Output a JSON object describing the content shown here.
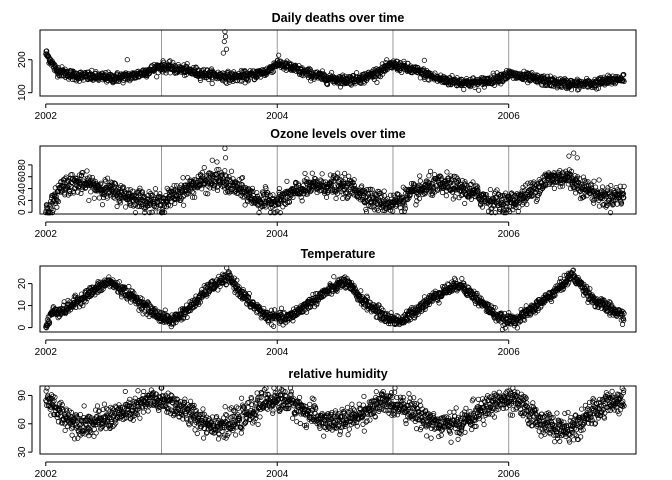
{
  "chart_data": [
    {
      "type": "scatter",
      "title": "Daily deaths over time",
      "xlabel": "",
      "ylabel": "",
      "x_start": "2002-01-01",
      "x_end": "2006-12-31",
      "xlim": [
        2001.95,
        2007.1
      ],
      "ylim": [
        90,
        290
      ],
      "x_ticks": [
        2002,
        2004,
        2006
      ],
      "x_tick_labels": [
        "2002",
        "2004",
        "2006"
      ],
      "y_ticks": [
        100,
        200
      ],
      "y_tick_labels": [
        "100",
        "200"
      ],
      "reference_lines_x": [
        2003,
        2004,
        2005,
        2006
      ],
      "grid": false,
      "profile": {
        "x": [
          "2002-01-01",
          "2002-01-15",
          "2002-02-01",
          "2002-03-01",
          "2002-04-01",
          "2002-06-01",
          "2002-08-01",
          "2002-10-01",
          "2002-12-01",
          "2003-01-01",
          "2003-02-01",
          "2003-04-01",
          "2003-06-01",
          "2003-08-01",
          "2003-10-01",
          "2003-12-01",
          "2004-01-01",
          "2004-02-01",
          "2004-04-01",
          "2004-06-01",
          "2004-08-01",
          "2004-10-01",
          "2004-12-01",
          "2005-01-01",
          "2005-02-01",
          "2005-04-01",
          "2005-06-01",
          "2005-08-01",
          "2005-10-01",
          "2005-12-01",
          "2006-01-01",
          "2006-02-01",
          "2006-04-01",
          "2006-06-01",
          "2006-08-01",
          "2006-10-01",
          "2006-12-31"
        ],
        "y": [
          220,
          200,
          170,
          160,
          152,
          148,
          145,
          150,
          170,
          180,
          175,
          165,
          155,
          148,
          150,
          165,
          190,
          180,
          160,
          145,
          138,
          145,
          170,
          185,
          178,
          160,
          140,
          132,
          130,
          145,
          155,
          150,
          140,
          130,
          125,
          128,
          145
        ],
        "spread": 14
      },
      "outliers": [
        {
          "x": "2003-07-20",
          "y": 285
        },
        {
          "x": "2003-07-22",
          "y": 270
        },
        {
          "x": "2003-07-18",
          "y": 255
        },
        {
          "x": "2003-07-25",
          "y": 232
        },
        {
          "x": "2003-07-15",
          "y": 220
        },
        {
          "x": "2002-09-15",
          "y": 200
        },
        {
          "x": "2005-04-10",
          "y": 198
        }
      ]
    },
    {
      "type": "scatter",
      "title": "Ozone levels over time",
      "xlabel": "",
      "ylabel": "",
      "x_start": "2002-01-01",
      "x_end": "2006-12-31",
      "xlim": [
        2001.95,
        2007.1
      ],
      "ylim": [
        -3,
        112
      ],
      "x_ticks": [
        2002,
        2004,
        2006
      ],
      "x_tick_labels": [
        "2002",
        "2004",
        "2006"
      ],
      "y_ticks": [
        0,
        20,
        40,
        60,
        80
      ],
      "y_tick_labels": [
        "0",
        "20",
        "40",
        "60",
        "80"
      ],
      "reference_lines_x": [
        2003,
        2004,
        2005,
        2006
      ],
      "grid": false,
      "profile": {
        "x": [
          "2002-01-01",
          "2002-01-20",
          "2002-02-20",
          "2002-04-01",
          "2002-06-01",
          "2002-08-01",
          "2002-10-01",
          "2002-12-01",
          "2003-01-01",
          "2003-03-01",
          "2003-05-01",
          "2003-07-01",
          "2003-09-01",
          "2003-11-01",
          "2004-01-01",
          "2004-03-01",
          "2004-05-01",
          "2004-07-01",
          "2004-09-01",
          "2004-11-01",
          "2005-01-01",
          "2005-03-01",
          "2005-05-01",
          "2005-07-01",
          "2005-09-01",
          "2005-11-01",
          "2006-01-01",
          "2006-03-01",
          "2006-05-01",
          "2006-07-01",
          "2006-09-01",
          "2006-11-01",
          "2006-12-31"
        ],
        "y": [
          2,
          10,
          45,
          50,
          45,
          35,
          25,
          18,
          15,
          35,
          50,
          55,
          40,
          20,
          18,
          35,
          45,
          45,
          40,
          20,
          15,
          30,
          45,
          45,
          35,
          20,
          15,
          30,
          55,
          60,
          40,
          25,
          30
        ],
        "spread": 16
      },
      "outliers": [
        {
          "x": "2003-07-20",
          "y": 108
        },
        {
          "x": "2003-07-22",
          "y": 92
        },
        {
          "x": "2003-06-10",
          "y": 88
        },
        {
          "x": "2003-06-25",
          "y": 85
        },
        {
          "x": "2006-07-25",
          "y": 100
        },
        {
          "x": "2006-07-10",
          "y": 95
        },
        {
          "x": "2006-08-05",
          "y": 92
        }
      ]
    },
    {
      "type": "scatter",
      "title": "Temperature",
      "xlabel": "",
      "ylabel": "",
      "x_start": "2002-01-01",
      "x_end": "2006-12-31",
      "xlim": [
        2001.95,
        2007.1
      ],
      "ylim": [
        -2,
        28
      ],
      "x_ticks": [
        2002,
        2004,
        2006
      ],
      "x_tick_labels": [
        "2002",
        "2004",
        "2006"
      ],
      "y_ticks": [
        0,
        10,
        20
      ],
      "y_tick_labels": [
        "0",
        "10",
        "20"
      ],
      "reference_lines_x": [
        2003,
        2004,
        2005,
        2006
      ],
      "grid": false,
      "profile": {
        "x": [
          "2002-01-01",
          "2002-01-20",
          "2002-03-01",
          "2002-05-01",
          "2002-07-20",
          "2002-10-01",
          "2002-12-15",
          "2003-02-01",
          "2003-04-01",
          "2003-06-01",
          "2003-08-01",
          "2003-10-01",
          "2003-12-01",
          "2004-02-01",
          "2004-04-01",
          "2004-06-01",
          "2004-08-01",
          "2004-10-01",
          "2004-12-15",
          "2005-02-01",
          "2005-04-01",
          "2005-06-01",
          "2005-08-01",
          "2005-10-01",
          "2005-12-15",
          "2006-02-01",
          "2006-04-01",
          "2006-06-01",
          "2006-07-20",
          "2006-10-01",
          "2006-12-31"
        ],
        "y": [
          0,
          7,
          8,
          14,
          21,
          14,
          6,
          3,
          9,
          18,
          23,
          12,
          5,
          4,
          10,
          16,
          21,
          12,
          4,
          3,
          10,
          16,
          20,
          12,
          3,
          4,
          10,
          17,
          24,
          12,
          5
        ],
        "spread": 2.5
      },
      "outliers": []
    },
    {
      "type": "scatter",
      "title": "relative humidity",
      "xlabel": "",
      "ylabel": "",
      "x_start": "2002-01-01",
      "x_end": "2006-12-31",
      "xlim": [
        2001.95,
        2007.1
      ],
      "ylim": [
        28,
        100
      ],
      "x_ticks": [
        2002,
        2004,
        2006
      ],
      "x_tick_labels": [
        "2002",
        "2004",
        "2006"
      ],
      "y_ticks": [
        30,
        60,
        90
      ],
      "y_tick_labels": [
        "30",
        "60",
        "90"
      ],
      "reference_lines_x": [
        2003,
        2004,
        2005,
        2006
      ],
      "grid": false,
      "profile": {
        "x": [
          "2002-01-01",
          "2002-02-01",
          "2002-04-01",
          "2002-06-01",
          "2002-08-01",
          "2002-10-01",
          "2002-12-01",
          "2003-02-01",
          "2003-04-01",
          "2003-06-01",
          "2003-08-01",
          "2003-10-01",
          "2003-12-01",
          "2004-02-01",
          "2004-04-01",
          "2004-06-01",
          "2004-08-01",
          "2004-10-01",
          "2004-12-01",
          "2005-02-01",
          "2005-04-01",
          "2005-06-01",
          "2005-08-01",
          "2005-10-01",
          "2005-12-01",
          "2006-02-01",
          "2006-04-01",
          "2006-06-01",
          "2006-08-01",
          "2006-10-01",
          "2006-12-31"
        ],
        "y": [
          88,
          75,
          62,
          60,
          68,
          75,
          85,
          82,
          70,
          60,
          58,
          70,
          85,
          85,
          72,
          62,
          62,
          72,
          82,
          80,
          68,
          58,
          60,
          72,
          85,
          82,
          65,
          55,
          55,
          75,
          88
        ],
        "spread": 12
      },
      "outliers": []
    }
  ]
}
